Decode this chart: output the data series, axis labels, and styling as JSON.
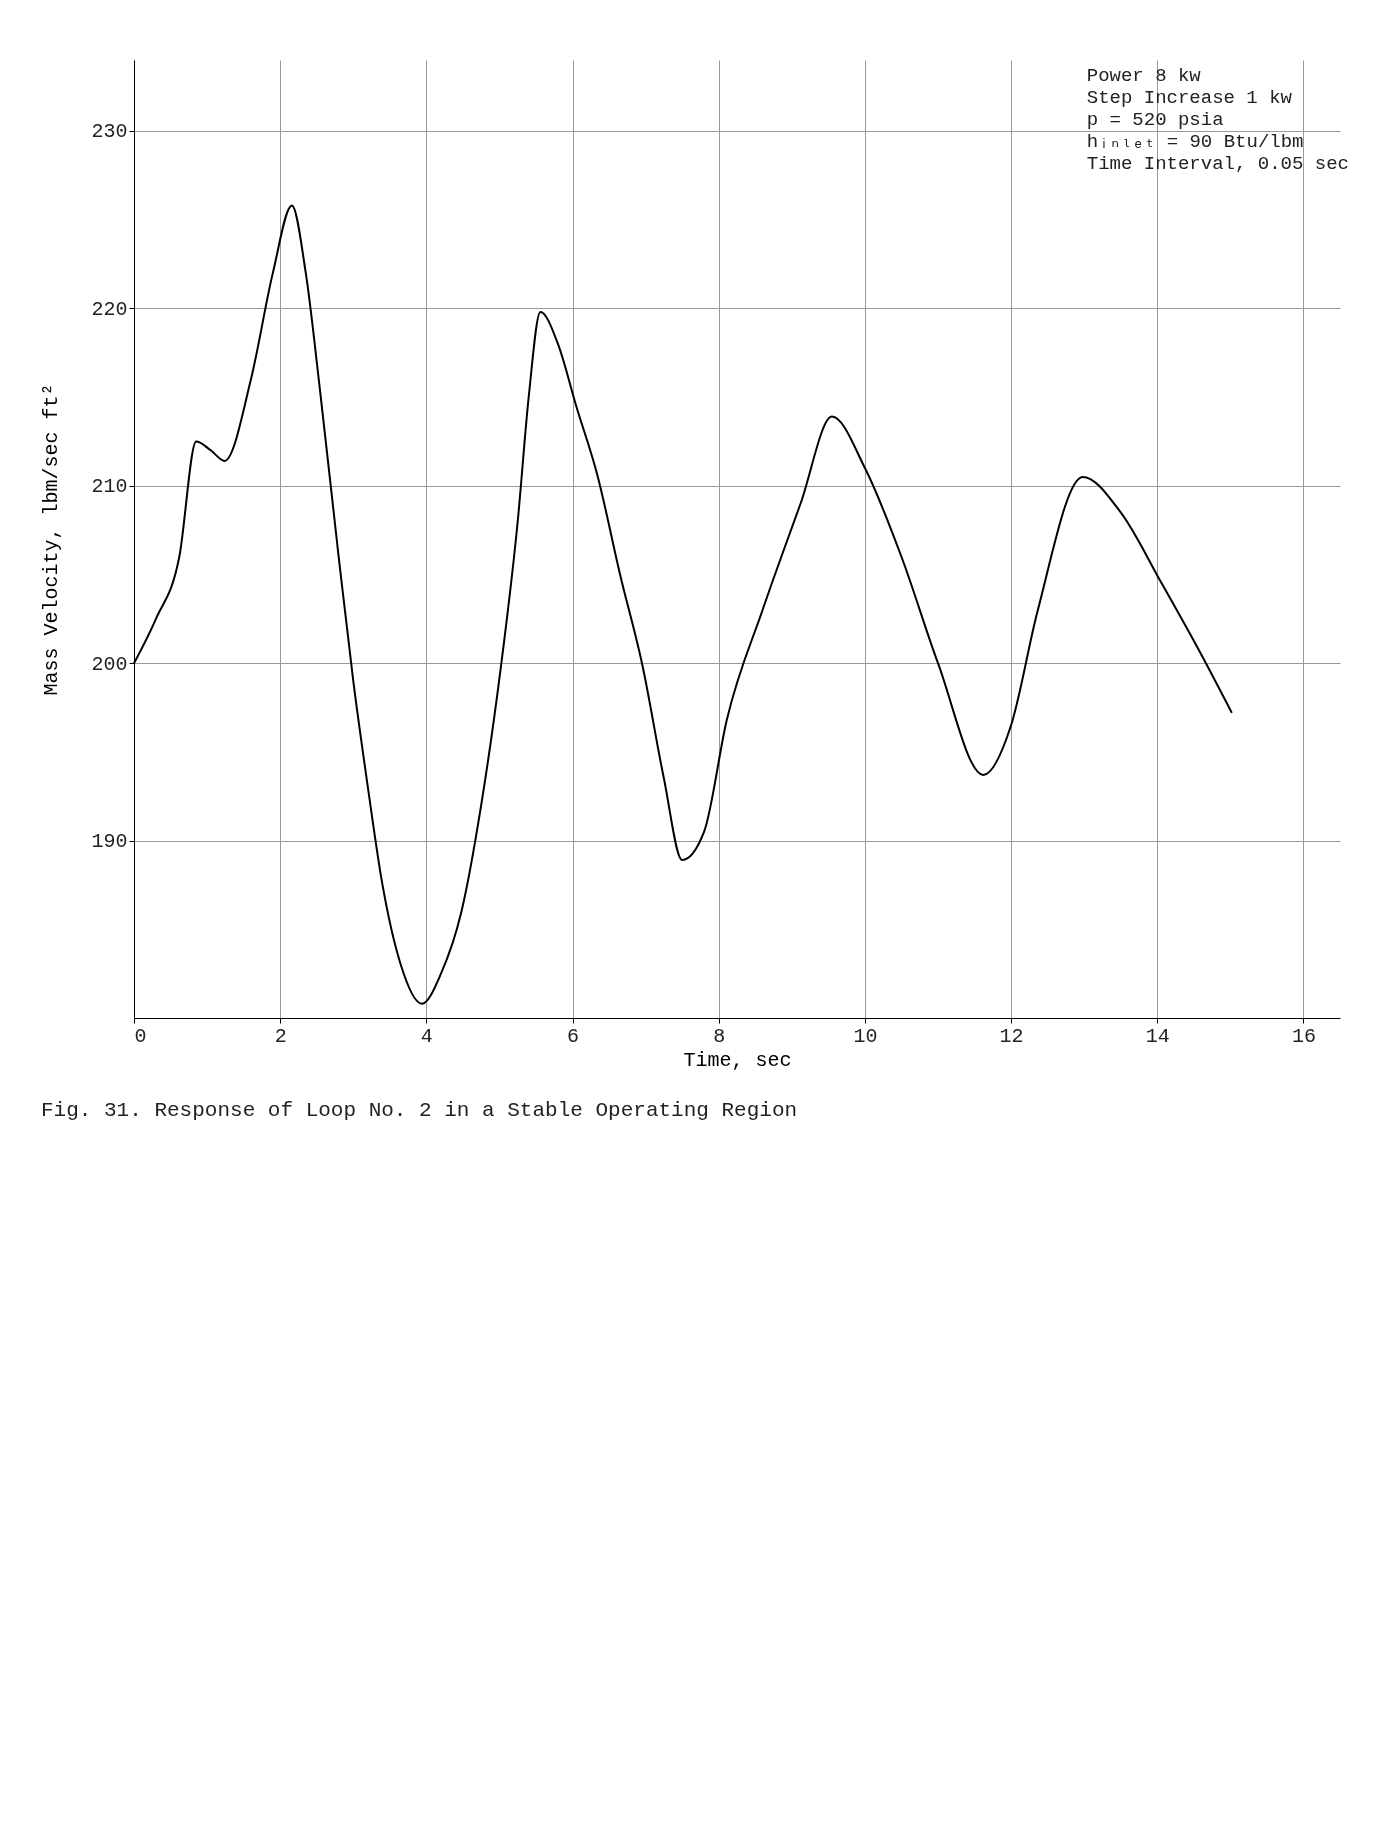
{
  "chart_data": {
    "type": "line",
    "title": "Fig. 31. Response of Loop No. 2 in a Stable Operating Region",
    "xlabel": "Time, sec",
    "ylabel": "Mass Velocity, lbm/sec ft²",
    "annotations": [
      "Power 8 kw",
      "Step Increase 1 kw",
      "p = 520 psia",
      "hᵢₙₗₑₜ = 90 Btu/lbm",
      "Time Interval, 0.05 sec"
    ],
    "x": [
      0,
      0.3,
      0.62,
      0.85,
      1.05,
      1.24,
      1.6,
      1.9,
      2.16,
      2.35,
      2.55,
      2.8,
      3.0,
      3.2,
      3.4,
      3.65,
      3.94,
      4.2,
      4.48,
      4.75,
      5.02,
      5.25,
      5.4,
      5.56,
      5.8,
      6.05,
      6.34,
      6.65,
      6.96,
      7.25,
      7.5,
      7.8,
      8.11,
      8.6,
      9.12,
      9.55,
      10.0,
      10.5,
      11.0,
      11.62,
      12.0,
      12.36,
      12.98,
      13.5,
      14.06,
      14.6,
      15.02
    ],
    "series": [
      {
        "color": "#000000",
        "values": [
          200,
          202.5,
          206,
          212.5,
          212,
          211.4,
          216,
          222,
          225.8,
          222,
          215.2,
          206,
          199,
          193,
          187.5,
          183,
          180.8,
          182.5,
          186,
          192,
          199.8,
          208,
          215,
          219.8,
          218,
          214.5,
          210.6,
          205,
          199.8,
          193.5,
          188.9,
          190.5,
          196.8,
          203,
          209,
          213.9,
          211,
          206,
          200,
          193.7,
          196.5,
          202.9,
          210.5,
          208.5,
          204.5,
          200.5,
          197.2
        ]
      }
    ],
    "xlim": [
      0,
      16.5
    ],
    "ylim": [
      180,
      234
    ],
    "xticks": [
      0,
      2,
      4,
      6,
      8,
      10,
      12,
      14,
      16
    ],
    "yticks": [
      190,
      200,
      210,
      220,
      230
    ],
    "grid": true,
    "marker": "none",
    "line_style": "solid"
  }
}
